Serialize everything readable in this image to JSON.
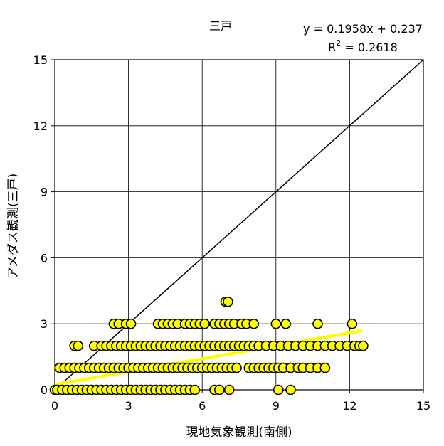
{
  "chart_data": {
    "type": "scatter",
    "title": "三戸",
    "xlabel": "現地気象観測(南側)",
    "ylabel": "アメダス観測(三戸)",
    "xlim": [
      0,
      15
    ],
    "ylim": [
      0,
      15
    ],
    "xticks": [
      "0",
      "3",
      "6",
      "9",
      "12",
      "15"
    ],
    "yticks": [
      "0",
      "3",
      "6",
      "9",
      "12",
      "15"
    ],
    "grid": true,
    "legend": "none",
    "regression": {
      "equation": "y = 0.1958x + 0.237",
      "r2_label": "R",
      "r2_sup": "2",
      "r2_value": " = 0.2618",
      "slope": 0.1958,
      "intercept": 0.237,
      "x_range": [
        0,
        12.5
      ],
      "color": "#ffff00"
    },
    "reference_line": {
      "from": [
        0,
        0
      ],
      "to": [
        15,
        15
      ],
      "color": "#000000"
    },
    "marker": {
      "fill": "#ffff00",
      "stroke": "#000000"
    },
    "series": [
      {
        "values": [
          [
            0,
            0
          ],
          [
            0.1,
            0
          ],
          [
            0.3,
            0
          ],
          [
            0.5,
            0
          ],
          [
            0.7,
            0
          ],
          [
            0.9,
            0
          ],
          [
            1.1,
            0
          ],
          [
            1.3,
            0
          ],
          [
            1.5,
            0
          ],
          [
            1.7,
            0
          ],
          [
            1.9,
            0
          ],
          [
            2.1,
            0
          ],
          [
            2.3,
            0
          ],
          [
            2.5,
            0
          ],
          [
            2.7,
            0
          ],
          [
            2.9,
            0
          ],
          [
            3.1,
            0
          ],
          [
            3.3,
            0
          ],
          [
            3.5,
            0
          ],
          [
            3.7,
            0
          ],
          [
            3.9,
            0
          ],
          [
            4.1,
            0
          ],
          [
            4.3,
            0
          ],
          [
            4.5,
            0
          ],
          [
            4.7,
            0
          ],
          [
            4.9,
            0
          ],
          [
            5.1,
            0
          ],
          [
            5.3,
            0
          ],
          [
            5.5,
            0
          ],
          [
            5.7,
            0
          ],
          [
            6.5,
            0
          ],
          [
            6.7,
            0
          ],
          [
            7.1,
            0
          ],
          [
            9.1,
            0
          ],
          [
            9.6,
            0
          ],
          [
            0.2,
            1
          ],
          [
            0.4,
            1
          ],
          [
            0.6,
            1
          ],
          [
            0.8,
            1
          ],
          [
            1,
            1
          ],
          [
            1.2,
            1
          ],
          [
            1.4,
            1
          ],
          [
            1.6,
            1
          ],
          [
            1.8,
            1
          ],
          [
            2,
            1
          ],
          [
            2.2,
            1
          ],
          [
            2.4,
            1
          ],
          [
            2.6,
            1
          ],
          [
            2.8,
            1
          ],
          [
            3,
            1
          ],
          [
            3.2,
            1
          ],
          [
            3.4,
            1
          ],
          [
            3.6,
            1
          ],
          [
            3.8,
            1
          ],
          [
            4,
            1
          ],
          [
            4.2,
            1
          ],
          [
            4.4,
            1
          ],
          [
            4.6,
            1
          ],
          [
            4.8,
            1
          ],
          [
            5,
            1
          ],
          [
            5.2,
            1
          ],
          [
            5.4,
            1
          ],
          [
            5.6,
            1
          ],
          [
            5.8,
            1
          ],
          [
            6,
            1
          ],
          [
            6.2,
            1
          ],
          [
            6.4,
            1
          ],
          [
            6.6,
            1
          ],
          [
            6.8,
            1
          ],
          [
            7,
            1
          ],
          [
            7.2,
            1
          ],
          [
            7.4,
            1
          ],
          [
            7.9,
            1
          ],
          [
            8.1,
            1
          ],
          [
            8.3,
            1
          ],
          [
            8.5,
            1
          ],
          [
            8.7,
            1
          ],
          [
            8.9,
            1
          ],
          [
            9.1,
            1
          ],
          [
            9.3,
            1
          ],
          [
            9.6,
            1
          ],
          [
            9.9,
            1
          ],
          [
            10.1,
            1
          ],
          [
            10.4,
            1
          ],
          [
            10.7,
            1
          ],
          [
            11,
            1
          ],
          [
            0.8,
            2
          ],
          [
            0.95,
            2
          ],
          [
            1.6,
            2
          ],
          [
            1.9,
            2
          ],
          [
            2.1,
            2
          ],
          [
            2.3,
            2
          ],
          [
            2.5,
            2
          ],
          [
            2.7,
            2
          ],
          [
            2.9,
            2
          ],
          [
            3.1,
            2
          ],
          [
            3.3,
            2
          ],
          [
            3.5,
            2
          ],
          [
            3.7,
            2
          ],
          [
            3.9,
            2
          ],
          [
            4.1,
            2
          ],
          [
            4.3,
            2
          ],
          [
            4.5,
            2
          ],
          [
            4.7,
            2
          ],
          [
            4.9,
            2
          ],
          [
            5.1,
            2
          ],
          [
            5.3,
            2
          ],
          [
            5.5,
            2
          ],
          [
            5.7,
            2
          ],
          [
            5.9,
            2
          ],
          [
            6.1,
            2
          ],
          [
            6.3,
            2
          ],
          [
            6.5,
            2
          ],
          [
            6.7,
            2
          ],
          [
            6.9,
            2
          ],
          [
            7.1,
            2
          ],
          [
            7.3,
            2
          ],
          [
            7.5,
            2
          ],
          [
            7.7,
            2
          ],
          [
            7.9,
            2
          ],
          [
            8.1,
            2
          ],
          [
            8.3,
            2
          ],
          [
            8.6,
            2
          ],
          [
            8.9,
            2
          ],
          [
            9.2,
            2
          ],
          [
            9.5,
            2
          ],
          [
            9.8,
            2
          ],
          [
            10.1,
            2
          ],
          [
            10.4,
            2
          ],
          [
            10.7,
            2
          ],
          [
            11,
            2
          ],
          [
            11.3,
            2
          ],
          [
            11.6,
            2
          ],
          [
            11.9,
            2
          ],
          [
            12.2,
            2
          ],
          [
            12.4,
            2
          ],
          [
            12.55,
            2
          ],
          [
            2.4,
            3
          ],
          [
            2.6,
            3
          ],
          [
            2.9,
            3
          ],
          [
            3.1,
            3
          ],
          [
            4.2,
            3
          ],
          [
            4.4,
            3
          ],
          [
            4.6,
            3
          ],
          [
            4.8,
            3
          ],
          [
            5,
            3
          ],
          [
            5.3,
            3
          ],
          [
            5.5,
            3
          ],
          [
            5.7,
            3
          ],
          [
            5.9,
            3
          ],
          [
            6.1,
            3
          ],
          [
            6.5,
            3
          ],
          [
            6.7,
            3
          ],
          [
            6.9,
            3
          ],
          [
            7.1,
            3
          ],
          [
            7.3,
            3
          ],
          [
            7.6,
            3
          ],
          [
            7.8,
            3
          ],
          [
            8.1,
            3
          ],
          [
            9,
            3
          ],
          [
            9.4,
            3
          ],
          [
            10.7,
            3
          ],
          [
            12.1,
            3
          ],
          [
            6.95,
            4
          ],
          [
            7.05,
            4
          ]
        ]
      }
    ]
  }
}
